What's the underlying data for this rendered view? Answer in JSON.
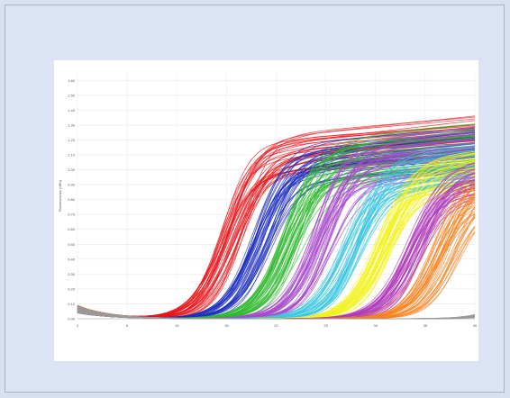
{
  "chart_data": {
    "type": "line",
    "title": "",
    "xlabel": "",
    "ylabel": "Fluorescence (dRn)",
    "xlim": [
      0,
      40
    ],
    "ylim": [
      0,
      1.65
    ],
    "grid": true,
    "yticks": [
      "0.00",
      "0.10",
      "0.20",
      "0.30",
      "0.40",
      "0.50",
      "0.60",
      "0.70",
      "0.80",
      "0.90",
      "1.00",
      "1.10",
      "1.20",
      "1.30",
      "1.40",
      "1.50",
      "1.60"
    ],
    "xticks": [
      "0",
      "5",
      "10",
      "15",
      "20",
      "25",
      "30",
      "35",
      "40"
    ],
    "series": [
      {
        "color": "#e8141a",
        "ct": 15.5,
        "plateau": 1.12,
        "spread": 1.2,
        "plateau_spread": 0.14
      },
      {
        "color": "#1e2fbf",
        "ct": 18.6,
        "plateau": 1.07,
        "spread": 1.1,
        "plateau_spread": 0.14
      },
      {
        "color": "#2eb82e",
        "ct": 21.5,
        "plateau": 1.08,
        "spread": 1.1,
        "plateau_spread": 0.16
      },
      {
        "color": "#a64ac9",
        "ct": 24.6,
        "plateau": 1.06,
        "spread": 1.1,
        "plateau_spread": 0.16
      },
      {
        "color": "#3cc6e0",
        "ct": 27.6,
        "plateau": 1.0,
        "spread": 1.1,
        "plateau_spread": 0.14
      },
      {
        "color": "#f2f21a",
        "ct": 30.8,
        "plateau": 0.98,
        "spread": 1.0,
        "plateau_spread": 0.14
      },
      {
        "color": "#b03ab8",
        "ct": 34.0,
        "plateau": 0.94,
        "spread": 1.1,
        "plateau_spread": 0.14
      },
      {
        "color": "#f5821f",
        "ct": 37.0,
        "plateau": 0.9,
        "spread": 1.6,
        "plateau_spread": 0.14
      },
      {
        "color": "#9a9a9a",
        "ct": 45.0,
        "plateau": 0.4,
        "spread": 0.5,
        "plateau_spread": 0.06
      }
    ]
  }
}
